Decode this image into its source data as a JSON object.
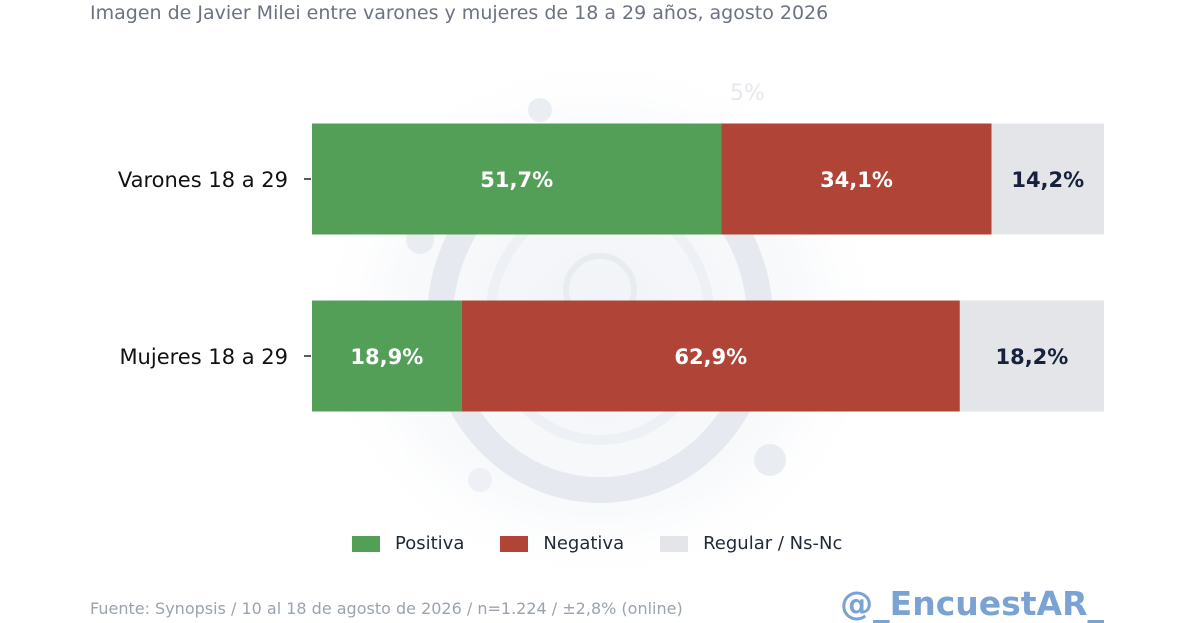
{
  "subtitle": "Imagen de Javier Milei entre varones y mujeres de 18 a 29 años, agosto 2026",
  "chart_data": {
    "type": "bar",
    "orientation": "horizontal",
    "stacked": true,
    "categories": [
      "Varones 18 a 29",
      "Mujeres 18 a 29"
    ],
    "series": [
      {
        "name": "Positiva",
        "values": [
          51.7,
          18.9
        ],
        "color": "#539f58",
        "label_color": "#ffffff"
      },
      {
        "name": "Negativa",
        "values": [
          34.1,
          62.9
        ],
        "color": "#b04436",
        "label_color": "#ffffff"
      },
      {
        "name": "Regular / Ns-Nc",
        "values": [
          14.2,
          18.2
        ],
        "color": "#e4e5e9",
        "label_color": "#16213d"
      }
    ],
    "data_labels": [
      [
        "51,7%",
        "18,9%"
      ],
      [
        "34,1%",
        "62,9%"
      ],
      [
        "14,2%",
        "18,2%"
      ]
    ],
    "xlim": [
      0,
      100
    ],
    "grid": false,
    "legend_position": "bottom"
  },
  "legend": [
    {
      "label": "Positiva",
      "color": "#539f58"
    },
    {
      "label": "Negativa",
      "color": "#b04436"
    },
    {
      "label": "Regular / Ns-Nc",
      "color": "#e4e5e9"
    }
  ],
  "source": "Fuente: Synopsis / 10 al 18 de agosto de 2026 / n=1.224 / ±2,8% (online)",
  "brand": "@_EncuestAR_",
  "watermark_icon": "argentina-emblem-icon"
}
